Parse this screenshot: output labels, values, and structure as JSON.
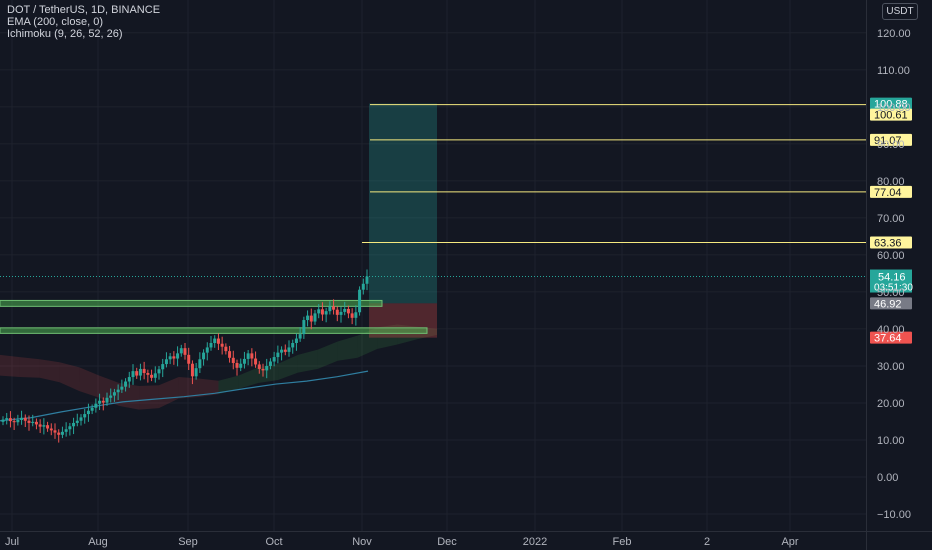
{
  "legend": {
    "symbol_line": "DOT / TetherUS, 1D, BINANCE",
    "ema_line": "EMA (200, close, 0)",
    "ichimoku_line": "Ichimoku (9, 26, 52, 26)"
  },
  "currency_button": "USDT",
  "colors": {
    "background": "#131722",
    "grid": "#1e222d",
    "up": "#26a69a",
    "down": "#ef5350",
    "ema": "#2f7ea0",
    "level_line": "#f5e97f",
    "zone": "#4caf50",
    "target_fill": "#1f4f4b",
    "stop_fill": "#4a2428"
  },
  "chart_data": {
    "type": "candlestick",
    "x_tick_labels": [
      "Jul",
      "Aug",
      "Sep",
      "Oct",
      "Nov",
      "Dec",
      "2022",
      "Feb",
      "2",
      "Apr"
    ],
    "y_tick_labels": [
      "120.00",
      "110.00",
      "100.00",
      "90.00",
      "80.00",
      "70.00",
      "60.00",
      "50.00",
      "40.00",
      "30.00",
      "20.00",
      "10.00",
      "0.00",
      "−10.00"
    ],
    "y_ticks": [
      120,
      110,
      100,
      90,
      80,
      70,
      60,
      50,
      40,
      30,
      20,
      10,
      0,
      -10
    ],
    "ylim": [
      -11,
      121
    ],
    "price_series": [
      15.5,
      15.9,
      15.1,
      14.8,
      15.4,
      16.0,
      15.2,
      14.6,
      14.9,
      14.2,
      13.6,
      14.0,
      13.1,
      12.6,
      12.0,
      11.4,
      12.2,
      12.9,
      13.7,
      14.6,
      15.2,
      16.1,
      17.0,
      17.9,
      18.7,
      19.8,
      20.6,
      20.1,
      21.4,
      22.0,
      22.9,
      23.6,
      24.4,
      25.8,
      27.0,
      28.6,
      27.4,
      29.2,
      28.1,
      27.6,
      26.8,
      28.0,
      29.1,
      30.5,
      31.8,
      32.6,
      32.0,
      33.4,
      34.8,
      33.0,
      30.6,
      27.2,
      29.4,
      31.8,
      33.6,
      35.0,
      36.2,
      37.4,
      36.0,
      35.2,
      34.0,
      32.2,
      30.8,
      29.5,
      30.6,
      31.9,
      33.4,
      32.0,
      30.4,
      29.2,
      28.8,
      30.0,
      31.2,
      32.4,
      33.6,
      34.4,
      33.8,
      35.0,
      36.2,
      37.4,
      38.6,
      42.4,
      43.6,
      42.0,
      44.2,
      45.3,
      43.9,
      44.8,
      46.1,
      45.2,
      43.8,
      44.6,
      45.4,
      44.2,
      43.0,
      44.5,
      50.6,
      52.2,
      54.16
    ],
    "ema_200": {
      "start_index": 0,
      "values": [
        15.2,
        16.0,
        17.6,
        19.0,
        20.3,
        21.0,
        21.7,
        22.6,
        23.9,
        25.1,
        25.9,
        27.1,
        28.6
      ]
    },
    "ichimoku_cloud": {
      "upper": [
        33.0,
        32.4,
        31.8,
        31.0,
        29.6,
        27.4,
        25.4,
        24.6,
        24.8,
        27.0,
        26.6,
        26.0,
        27.4,
        29.6,
        30.6,
        33.0,
        34.4,
        36.6,
        38.2,
        40.4,
        41.2,
        40.6,
        40.0
      ],
      "lower": [
        27.4,
        27.0,
        26.8,
        25.6,
        23.2,
        21.4,
        19.2,
        18.2,
        18.6,
        21.2,
        21.6,
        22.4,
        23.8,
        25.4,
        26.2,
        28.2,
        29.2,
        31.4,
        32.2,
        34.6,
        35.8,
        37.2,
        38.4
      ]
    },
    "support_zones": [
      {
        "low": 46.1,
        "high": 47.7
      },
      {
        "low": 38.8,
        "high": 40.3
      }
    ],
    "long_position": {
      "entry": 46.92,
      "stop": 37.64,
      "target": 100.88
    },
    "horizontal_levels": [
      100.61,
      91.07,
      77.04,
      63.36
    ],
    "price_labels": {
      "target": "100.88",
      "levels": [
        "100.61",
        "91.07",
        "77.04",
        "63.36"
      ],
      "last_price": "54.16",
      "countdown": "03:51:30",
      "entry": "46.92",
      "stop": "37.64"
    }
  }
}
